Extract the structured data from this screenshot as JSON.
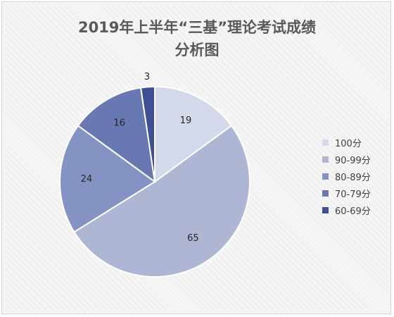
{
  "chart_data": {
    "type": "pie",
    "title_line1": "2019年上半年“三基”理论考试成绩",
    "title_line2": "分析图",
    "legend_position": "right",
    "slices": [
      {
        "label": "100分",
        "value": 19,
        "color": "#d3d8ea"
      },
      {
        "label": "90-99分",
        "value": 65,
        "color": "#aeb6d4"
      },
      {
        "label": "80-89分",
        "value": 24,
        "color": "#8493c4"
      },
      {
        "label": "70-79分",
        "value": 16,
        "color": "#6878b2"
      },
      {
        "label": "60-69分",
        "value": 3,
        "color": "#3f4f94"
      }
    ]
  }
}
